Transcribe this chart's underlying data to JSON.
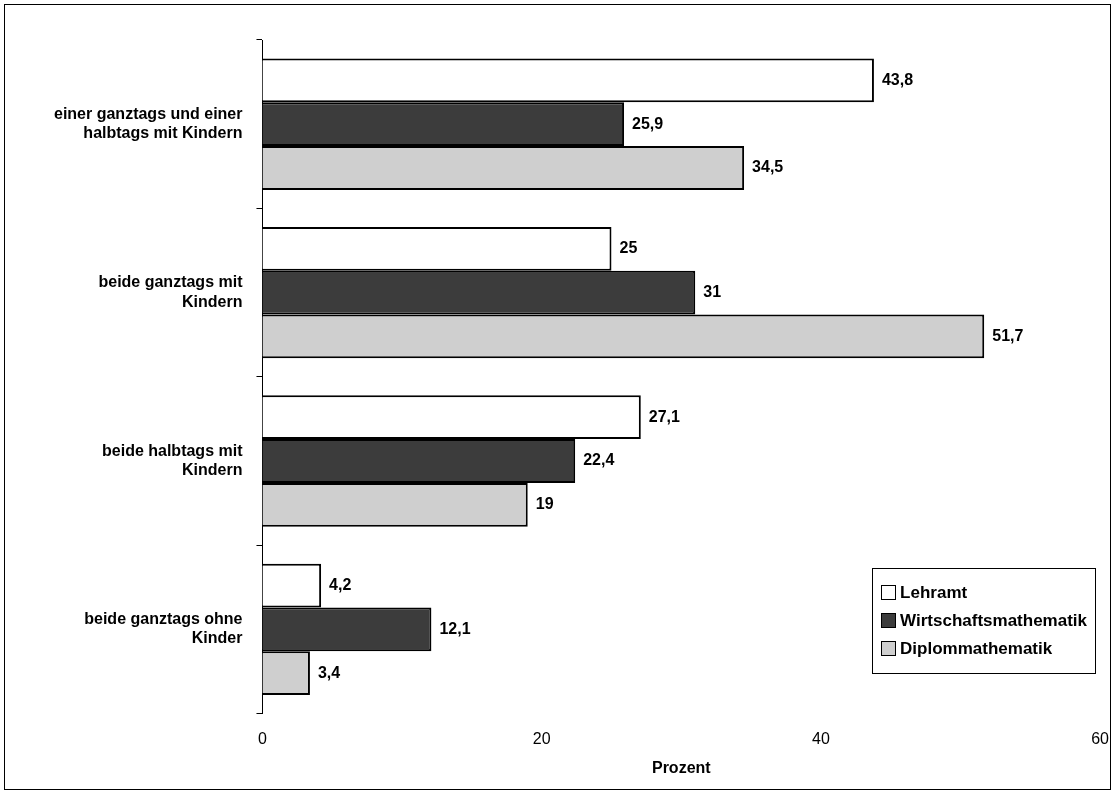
{
  "chart_data": {
    "type": "bar",
    "orientation": "horizontal",
    "xlabel": "Prozent",
    "categories": [
      "einer ganztags und einer halbtags mit Kindern",
      "beide ganztags mit Kindern",
      "beide halbtags mit Kindern",
      "beide ganztags ohne Kinder"
    ],
    "series": [
      {
        "name": "Lehramt",
        "color": "#ffffff",
        "values": [
          43.8,
          25,
          27.1,
          4.2
        ],
        "value_labels": [
          "43,8",
          "25",
          "27,1",
          "4,2"
        ]
      },
      {
        "name": "Wirtschaftsmathematik",
        "color": "#3c3c3c",
        "values": [
          25.9,
          31,
          22.4,
          12.1
        ],
        "value_labels": [
          "25,9",
          "31",
          "22,4",
          "12,1"
        ]
      },
      {
        "name": "Diplommathematik",
        "color": "#cfcfcf",
        "values": [
          34.5,
          51.7,
          19,
          3.4
        ],
        "value_labels": [
          "34,5",
          "51,7",
          "19",
          "3,4"
        ]
      }
    ],
    "xlim": [
      0,
      60
    ],
    "xticks": [
      0,
      20,
      40,
      60
    ],
    "grid": false,
    "legend": "bottom right"
  }
}
